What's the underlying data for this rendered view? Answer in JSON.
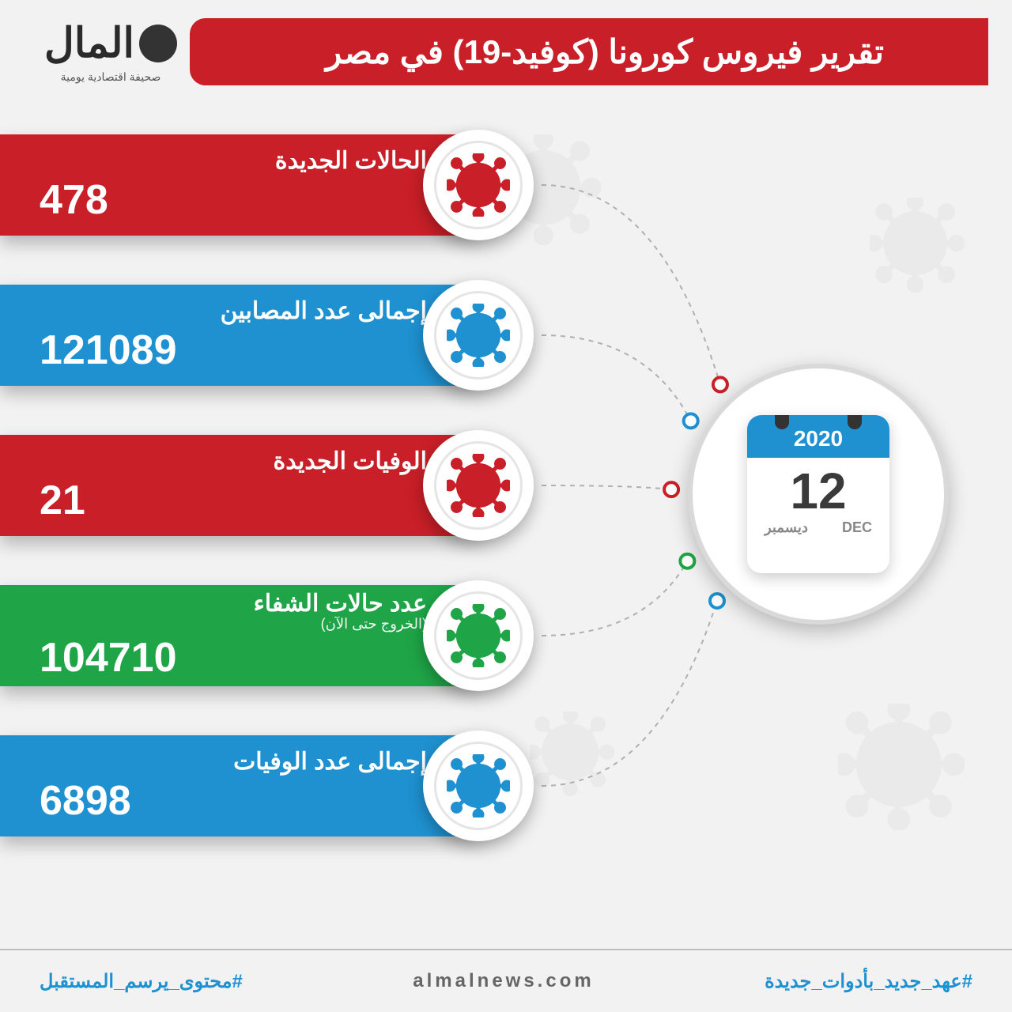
{
  "header": {
    "title": "تقرير فيروس كورونا (كوفيد-19) في مصر",
    "title_bg": "#c91f28",
    "logo_text": "المال",
    "logo_sub": "صحيفة اقتصادية يومية"
  },
  "date": {
    "year": "2020",
    "day": "12",
    "month_ar": "ديسمبر",
    "month_en": "DEC",
    "head_bg": "#1f91d0"
  },
  "stats": [
    {
      "label": "الحالات الجديدة",
      "sublabel": "",
      "value": "478",
      "color": "#c91f28",
      "virus": "#c91f28"
    },
    {
      "label": "إجمالى عدد المصابين",
      "sublabel": "",
      "value": "121089",
      "color": "#1f91d0",
      "virus": "#1f91d0"
    },
    {
      "label": "الوفيات الجديدة",
      "sublabel": "",
      "value": "21",
      "color": "#c91f28",
      "virus": "#c91f28"
    },
    {
      "label": "عدد حالات الشفاء",
      "sublabel": "(الخروج حتى الآن)",
      "value": "104710",
      "color": "#1fa547",
      "virus": "#1fa547"
    },
    {
      "label": "إجمالى عدد الوفيات",
      "sublabel": "",
      "value": "6898",
      "color": "#1f91d0",
      "virus": "#1f91d0"
    }
  ],
  "connectors": {
    "stroke": "#b0b0b0",
    "stroke_width": 2,
    "dash": "6,6",
    "dot_radius": 9,
    "dot_stroke_width": 4
  },
  "footer": {
    "left_hashtag": "#عهد_جديد_بأدوات_جديدة",
    "center": "almalnews.com",
    "right_hashtag": "#محتوى_يرسم_المستقبل",
    "hashtag_color": "#1f91d0"
  },
  "background": "#f2f2f2"
}
